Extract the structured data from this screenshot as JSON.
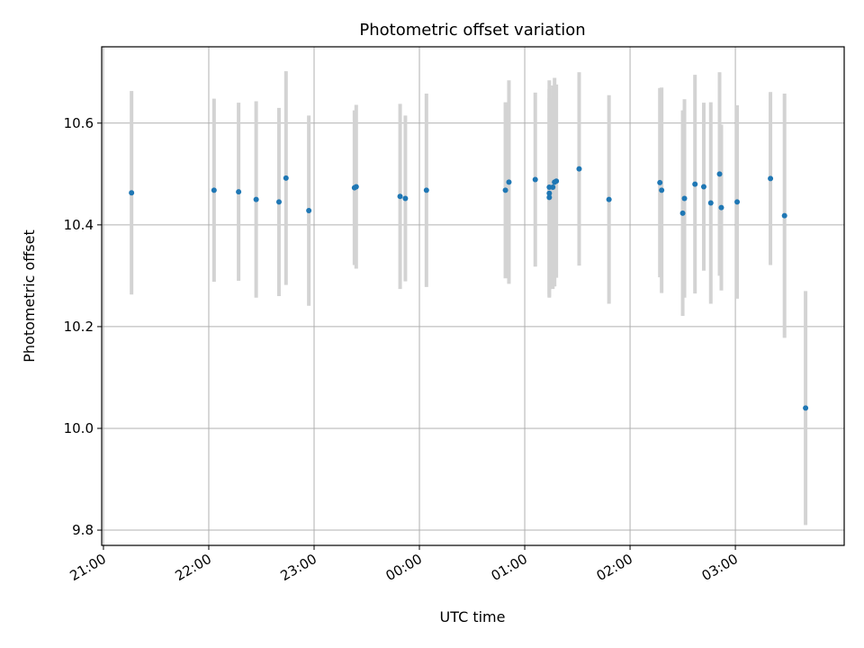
{
  "chart_data": {
    "type": "scatter",
    "title": "Photometric offset variation",
    "xlabel": "UTC time",
    "ylabel": "Photometric offset",
    "x_unit": "UTC hh:mm",
    "xlim": [
      "20:59",
      "04:02"
    ],
    "ylim": [
      9.77,
      10.75
    ],
    "x_ticks": [
      "21:00",
      "22:00",
      "23:00",
      "00:00",
      "01:00",
      "02:00",
      "03:00"
    ],
    "y_ticks": [
      "9.8",
      "10.0",
      "10.2",
      "10.4",
      "10.6"
    ],
    "grid": true,
    "legend": "none",
    "colors": {
      "point": "#1f77b4",
      "errorbar": "#d3d3d3",
      "grid": "#b0b0b0"
    },
    "points": [
      {
        "x": "21:16",
        "y": 10.463,
        "err": 0.2
      },
      {
        "x": "22:03",
        "y": 10.468,
        "err": 0.18
      },
      {
        "x": "22:17",
        "y": 10.465,
        "err": 0.175
      },
      {
        "x": "22:27",
        "y": 10.45,
        "err": 0.193
      },
      {
        "x": "22:40",
        "y": 10.445,
        "err": 0.185
      },
      {
        "x": "22:44",
        "y": 10.492,
        "err": 0.21
      },
      {
        "x": "22:57",
        "y": 10.428,
        "err": 0.187
      },
      {
        "x": "23:23",
        "y": 10.473,
        "err": 0.152
      },
      {
        "x": "23:24",
        "y": 10.475,
        "err": 0.161
      },
      {
        "x": "23:49",
        "y": 10.456,
        "err": 0.182
      },
      {
        "x": "23:52",
        "y": 10.452,
        "err": 0.163
      },
      {
        "x": "00:04",
        "y": 10.468,
        "err": 0.19
      },
      {
        "x": "00:49",
        "y": 10.468,
        "err": 0.173
      },
      {
        "x": "00:51",
        "y": 10.484,
        "err": 0.2
      },
      {
        "x": "01:06",
        "y": 10.489,
        "err": 0.171
      },
      {
        "x": "01:14",
        "y": 10.474,
        "err": 0.21
      },
      {
        "x": "01:14",
        "y": 10.462,
        "err": 0.205
      },
      {
        "x": "01:14",
        "y": 10.454,
        "err": 0.195
      },
      {
        "x": "01:16",
        "y": 10.474,
        "err": 0.2
      },
      {
        "x": "01:17",
        "y": 10.484,
        "err": 0.205
      },
      {
        "x": "01:18",
        "y": 10.486,
        "err": 0.19
      },
      {
        "x": "01:31",
        "y": 10.51,
        "err": 0.19
      },
      {
        "x": "01:48",
        "y": 10.45,
        "err": 0.205
      },
      {
        "x": "02:17",
        "y": 10.483,
        "err": 0.186
      },
      {
        "x": "02:18",
        "y": 10.468,
        "err": 0.202
      },
      {
        "x": "02:30",
        "y": 10.423,
        "err": 0.202
      },
      {
        "x": "02:31",
        "y": 10.452,
        "err": 0.195
      },
      {
        "x": "02:37",
        "y": 10.48,
        "err": 0.215
      },
      {
        "x": "02:42",
        "y": 10.475,
        "err": 0.165
      },
      {
        "x": "02:46",
        "y": 10.443,
        "err": 0.198
      },
      {
        "x": "02:51",
        "y": 10.5,
        "err": 0.2
      },
      {
        "x": "02:52",
        "y": 10.434,
        "err": 0.163
      },
      {
        "x": "03:01",
        "y": 10.445,
        "err": 0.19
      },
      {
        "x": "03:20",
        "y": 10.491,
        "err": 0.17
      },
      {
        "x": "03:28",
        "y": 10.418,
        "err": 0.24
      },
      {
        "x": "03:40",
        "y": 10.04,
        "err": 0.23
      }
    ]
  }
}
